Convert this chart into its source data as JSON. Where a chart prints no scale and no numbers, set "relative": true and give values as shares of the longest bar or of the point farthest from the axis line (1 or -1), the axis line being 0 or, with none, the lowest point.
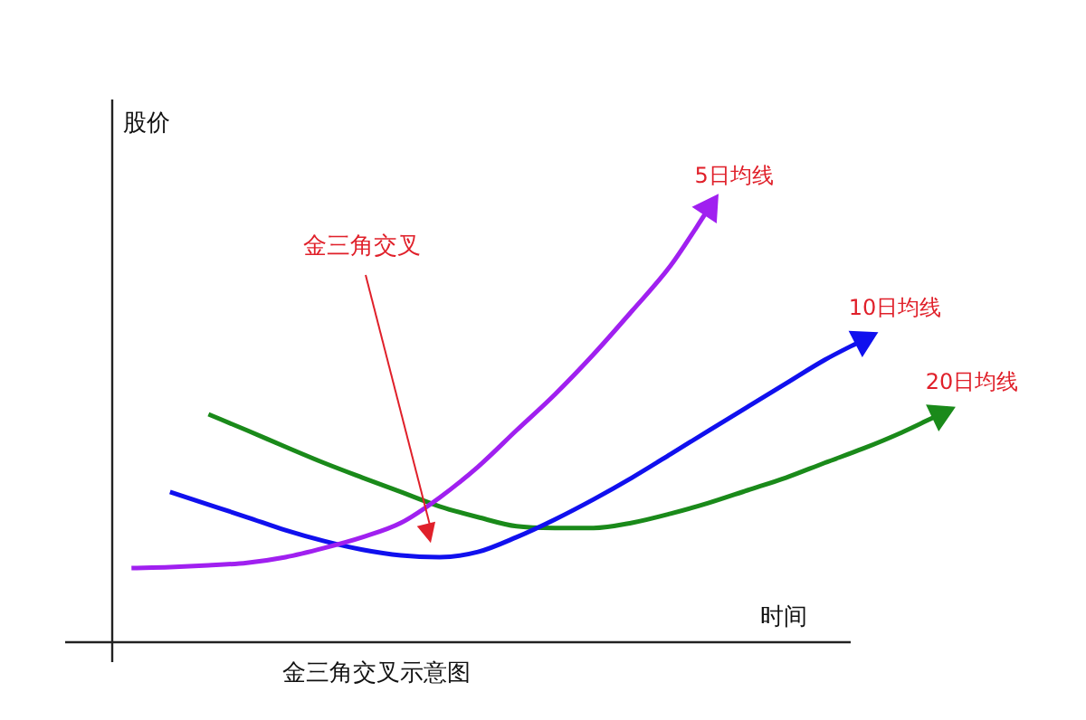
{
  "chart_data": {
    "type": "line",
    "relative": true,
    "title": "金三角交叉示意图",
    "xlabel": "时间",
    "ylabel": "股价",
    "annotations": [
      "金三角交叉"
    ],
    "legend": false,
    "marker": "none",
    "categories": [
      null,
      null,
      null,
      null,
      null,
      null,
      null,
      null,
      null,
      null,
      null,
      null,
      null,
      null,
      null,
      null,
      null,
      null,
      null,
      null,
      null,
      null
    ],
    "series": [
      {
        "name": "5日均线",
        "color": "#a020f0",
        "values": [
          0.171,
          0.173,
          0.177,
          0.183,
          0.196,
          0.217,
          0.242,
          0.275,
          0.333,
          0.404,
          0.488,
          0.571,
          0.663,
          0.763,
          0.867,
          1,
          null,
          null,
          null,
          null,
          null,
          null
        ]
      },
      {
        "name": "10日均线",
        "color": "#1010ee",
        "values": [
          null,
          0.346,
          0.317,
          0.288,
          0.258,
          0.233,
          0.213,
          0.2,
          0.196,
          0.208,
          0.242,
          0.283,
          0.329,
          0.379,
          0.433,
          0.488,
          0.542,
          0.596,
          0.65,
          0.696,
          null,
          null
        ]
      },
      {
        "name": "20日均线",
        "color": "#1a8a1a",
        "values": [
          null,
          null,
          0.525,
          0.488,
          0.45,
          0.413,
          0.379,
          0.346,
          0.313,
          0.288,
          0.267,
          0.263,
          0.263,
          0.275,
          0.296,
          0.321,
          0.35,
          0.379,
          0.413,
          0.446,
          0.483,
          0.525
        ]
      }
    ]
  }
}
